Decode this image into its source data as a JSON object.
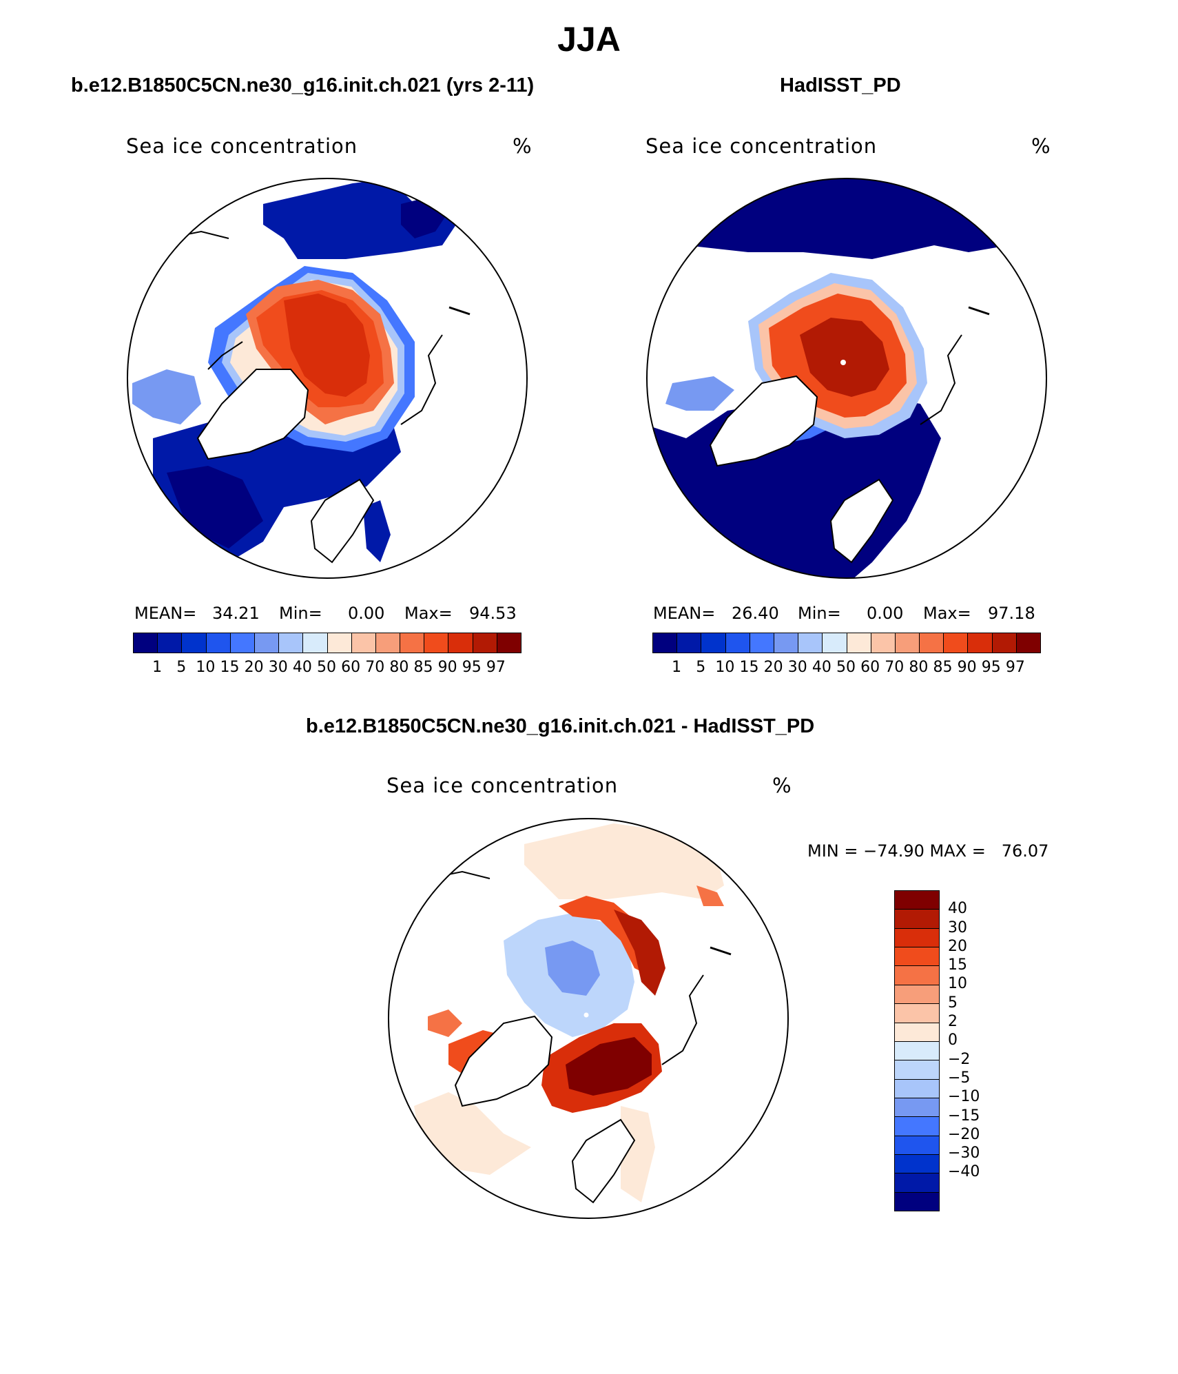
{
  "title": "JJA",
  "panels": [
    {
      "title": "b.e12.B1850C5CN.ne30_g16.init.ch.021 (yrs 2-11)",
      "variable": "Sea ice concentration",
      "units": "%",
      "stats": {
        "mean_label": "MEAN=",
        "mean": "34.21",
        "min_label": "Min=",
        "min": "0.00",
        "max_label": "Max=",
        "max": "94.53"
      }
    },
    {
      "title": "HadISST_PD",
      "variable": "Sea ice concentration",
      "units": "%",
      "stats": {
        "mean_label": "MEAN=",
        "mean": "26.40",
        "min_label": "Min=",
        "min": "0.00",
        "max_label": "Max=",
        "max": "97.18"
      }
    }
  ],
  "diff_panel": {
    "title": "b.e12.B1850C5CN.ne30_g16.init.ch.021 - HadISST_PD",
    "variable": "Sea ice concentration",
    "units": "%",
    "minmax": "MIN = −74.90 MAX =   76.07"
  },
  "abs_colorbar": {
    "colors": [
      "#00007f",
      "#0019a8",
      "#0033cc",
      "#1f55ee",
      "#4477ff",
      "#7799f2",
      "#a8c5fa",
      "#d8ebfb",
      "#fde9d8",
      "#fbc4a8",
      "#f79e7a",
      "#f57245",
      "#f04c1c",
      "#d92e0a",
      "#b21a04",
      "#7f0000"
    ],
    "labels": [
      "1",
      "5",
      "10",
      "15",
      "20",
      "30",
      "40",
      "50",
      "60",
      "70",
      "80",
      "85",
      "90",
      "95",
      "97"
    ]
  },
  "diff_colorbar": {
    "colors": [
      "#7f0000",
      "#b21a04",
      "#d92e0a",
      "#f04c1c",
      "#f57245",
      "#f79e7a",
      "#fbc4a8",
      "#fde9d8",
      "#d8ebfb",
      "#bdd6fb",
      "#a8c5fa",
      "#7799f2",
      "#4477ff",
      "#1f55ee",
      "#0033cc",
      "#0019a8",
      "#00007f"
    ],
    "labels": [
      "40",
      "30",
      "20",
      "15",
      "10",
      "5",
      "2",
      "0",
      "−2",
      "−5",
      "−10",
      "−15",
      "−20",
      "−30",
      "−40"
    ]
  }
}
